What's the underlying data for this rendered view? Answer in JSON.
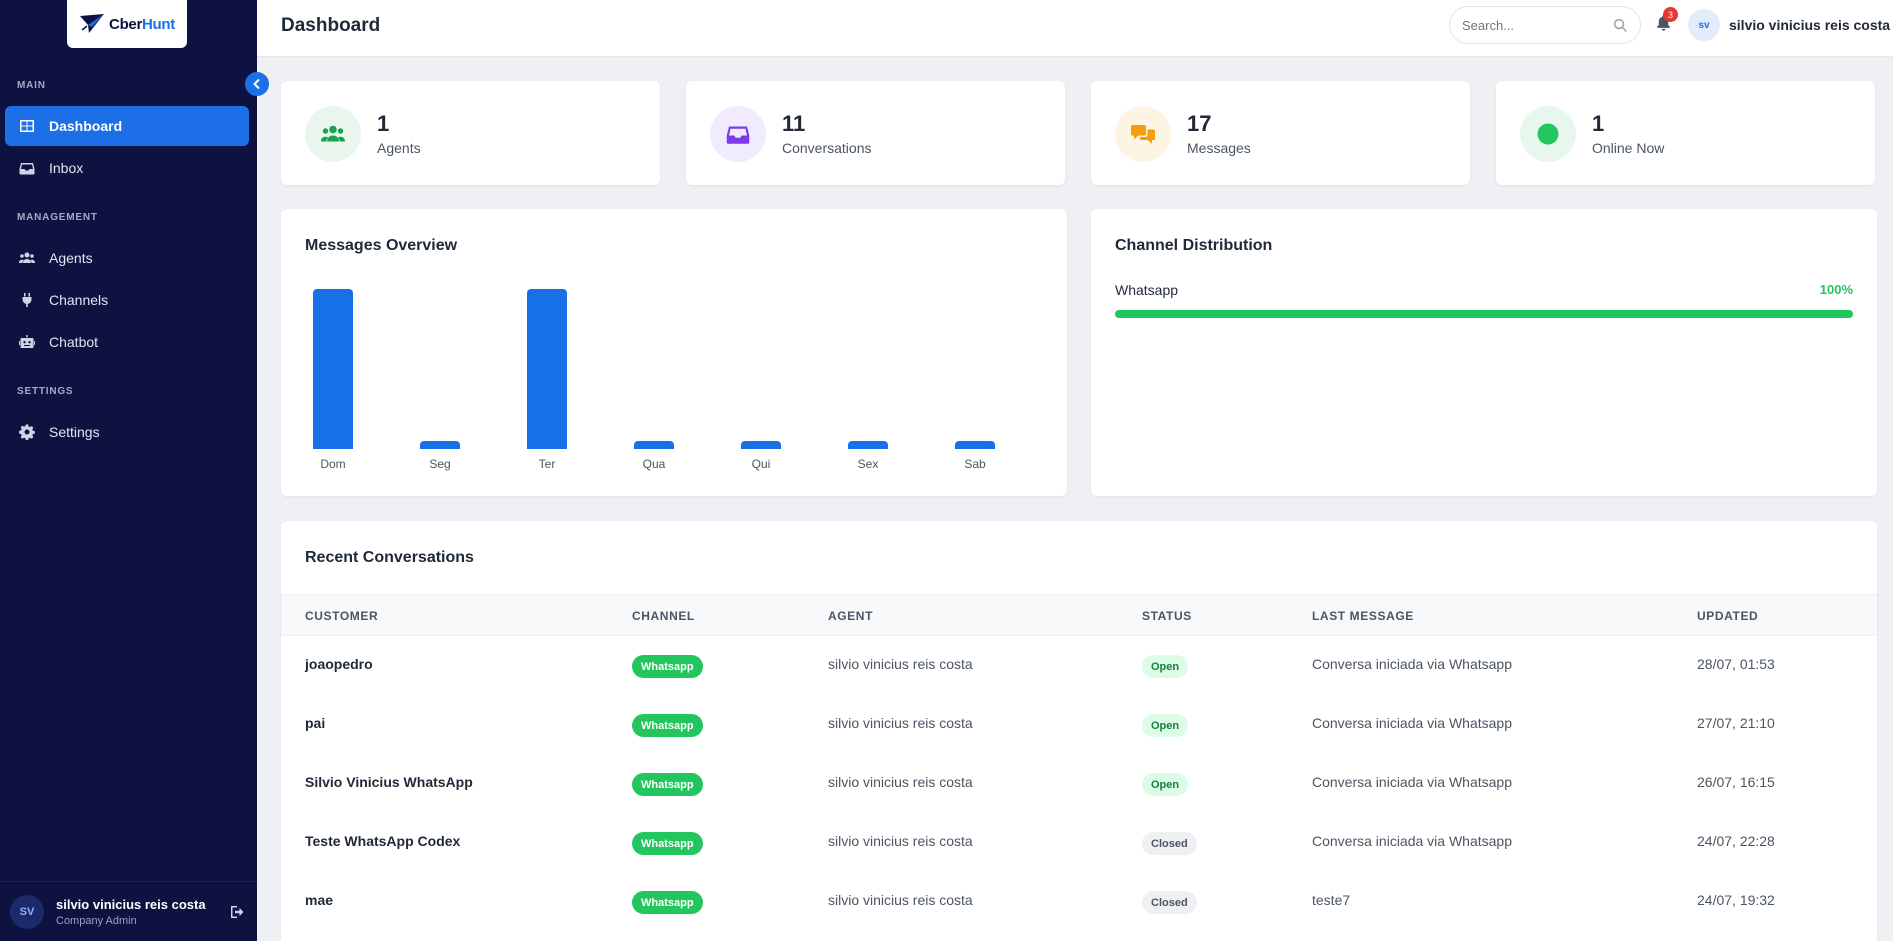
{
  "brand": {
    "name_part1": "Cber",
    "name_part2": "Hunt",
    "logo_icon": "paper-plane-logo"
  },
  "sidebar": {
    "sections": [
      {
        "label": "MAIN",
        "items": [
          {
            "label": "Dashboard",
            "icon": "dashboard-grid-icon",
            "active": true
          },
          {
            "label": "Inbox",
            "icon": "inbox-icon",
            "active": false
          }
        ]
      },
      {
        "label": "MANAGEMENT",
        "items": [
          {
            "label": "Agents",
            "icon": "users-icon",
            "active": false
          },
          {
            "label": "Channels",
            "icon": "plug-icon",
            "active": false
          },
          {
            "label": "Chatbot",
            "icon": "robot-icon",
            "active": false
          }
        ]
      },
      {
        "label": "SETTINGS",
        "items": [
          {
            "label": "Settings",
            "icon": "gear-icon",
            "active": false
          }
        ]
      }
    ],
    "user": {
      "initials": "SV",
      "name": "silvio vinicius reis costa",
      "role": "Company Admin"
    }
  },
  "header": {
    "title": "Dashboard",
    "search_placeholder": "Search...",
    "notification_count": "3",
    "user_initials": "sv",
    "user_name": "silvio vinicius reis costa"
  },
  "stats": [
    {
      "value": "1",
      "label": "Agents",
      "icon": "users-icon",
      "color": "#16a34a",
      "bg": "#e8f6ee"
    },
    {
      "value": "11",
      "label": "Conversations",
      "icon": "inbox-icon",
      "color": "#7c3aed",
      "bg": "#f1ecfd"
    },
    {
      "value": "17",
      "label": "Messages",
      "icon": "chat-bubbles-icon",
      "color": "#f59e0b",
      "bg": "#fef4e4"
    },
    {
      "value": "1",
      "label": "Online Now",
      "icon": "online-dot-icon",
      "color": "#22c55e",
      "bg": "#e8f7ee"
    }
  ],
  "messages_overview": {
    "title": "Messages Overview",
    "chart_data": {
      "type": "bar",
      "categories": [
        "Dom",
        "Seg",
        "Ter",
        "Qua",
        "Qui",
        "Sex",
        "Sab"
      ],
      "values": [
        8,
        0,
        8,
        0,
        0,
        0,
        0
      ],
      "title": "Messages Overview",
      "xlabel": "",
      "ylabel": "",
      "grid": false,
      "color": "#1670e8"
    }
  },
  "channel_distribution": {
    "title": "Channel Distribution",
    "channels": [
      {
        "name": "Whatsapp",
        "percent_label": "100%",
        "percent": 100,
        "color": "#22c55e"
      }
    ]
  },
  "recent_conversations": {
    "title": "Recent Conversations",
    "columns": [
      "CUSTOMER",
      "CHANNEL",
      "AGENT",
      "STATUS",
      "LAST MESSAGE",
      "UPDATED"
    ],
    "rows": [
      {
        "customer": "joaopedro",
        "channel": "Whatsapp",
        "agent": "silvio vinicius reis costa",
        "status": "Open",
        "last_message": "Conversa iniciada via Whatsapp",
        "updated": "28/07, 01:53"
      },
      {
        "customer": "pai",
        "channel": "Whatsapp",
        "agent": "silvio vinicius reis costa",
        "status": "Open",
        "last_message": "Conversa iniciada via Whatsapp",
        "updated": "27/07, 21:10"
      },
      {
        "customer": "Silvio Vinicius WhatsApp",
        "channel": "Whatsapp",
        "agent": "silvio vinicius reis costa",
        "status": "Open",
        "last_message": "Conversa iniciada via Whatsapp",
        "updated": "26/07, 16:15"
      },
      {
        "customer": "Teste WhatsApp Codex",
        "channel": "Whatsapp",
        "agent": "silvio vinicius reis costa",
        "status": "Closed",
        "last_message": "Conversa iniciada via Whatsapp",
        "updated": "24/07, 22:28"
      },
      {
        "customer": "mae",
        "channel": "Whatsapp",
        "agent": "silvio vinicius reis costa",
        "status": "Closed",
        "last_message": "teste7",
        "updated": "24/07, 19:32"
      }
    ]
  }
}
